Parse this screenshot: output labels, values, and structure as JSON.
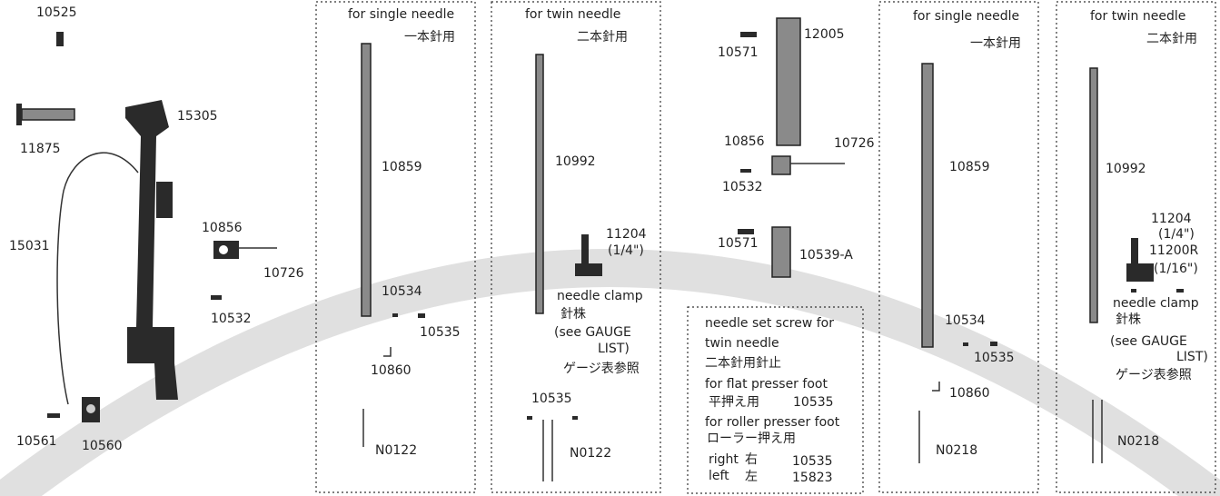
{
  "left_group": {
    "labels": [
      "10525",
      "11875",
      "15305",
      "15031",
      "10856",
      "10726",
      "10532",
      "10561",
      "10560"
    ]
  },
  "panels": [
    {
      "heading": "for single needle",
      "heading_jp": "一本針用",
      "labels": [
        "10859",
        "10534",
        "10535",
        "10860",
        "N0122"
      ]
    },
    {
      "heading": "for twin needle",
      "heading_jp": "二本針用",
      "labels": [
        "10992",
        "11204",
        "(1/4\")",
        "needle clamp",
        "針株",
        "(see GAUGE",
        "LIST)",
        "ゲージ表参照",
        "10535",
        "N0122"
      ]
    },
    {
      "labels": [
        "12005",
        "10571",
        "10856",
        "10726",
        "10532",
        "10571",
        "10539-A"
      ],
      "note": [
        "needle set screw for",
        "twin needle",
        "二本針用針止",
        "for flat presser foot",
        "平押え用",
        "10535",
        "for roller presser foot",
        "ローラー押え用",
        "right",
        "右",
        "10535",
        "left",
        "左",
        "15823"
      ]
    },
    {
      "heading": "for single needle",
      "heading_jp": "一本針用",
      "labels": [
        "10859",
        "10534",
        "10535",
        "10860",
        "N0218"
      ]
    },
    {
      "heading": "for twin needle",
      "heading_jp": "二本針用",
      "labels": [
        "10992",
        "11204",
        "(1/4\")",
        "11200R",
        "(1/16\")",
        "needle clamp",
        "針株",
        "(see GAUGE",
        "LIST)",
        "ゲージ表参照",
        "N0218"
      ]
    }
  ]
}
